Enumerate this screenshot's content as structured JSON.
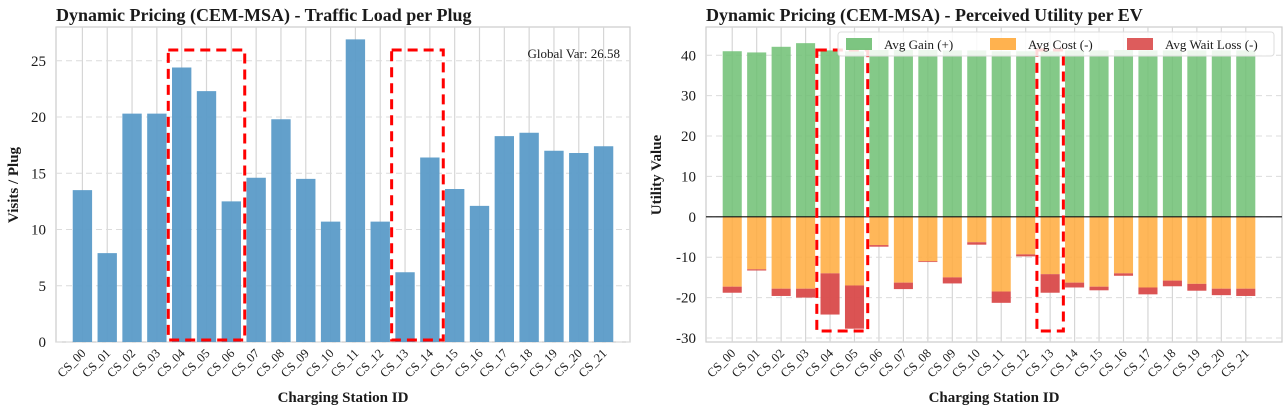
{
  "chart_data": [
    {
      "type": "bar",
      "title": "Dynamic Pricing (CEM-MSA) - Traffic Load per Plug",
      "xlabel": "Charging Station ID",
      "ylabel": "Visits / Plug",
      "ylim": [
        0,
        28
      ],
      "yticks": [
        0,
        5,
        10,
        15,
        20,
        25
      ],
      "categories": [
        "CS_00",
        "CS_01",
        "CS_02",
        "CS_03",
        "CS_04",
        "CS_05",
        "CS_06",
        "CS_07",
        "CS_08",
        "CS_09",
        "CS_10",
        "CS_11",
        "CS_12",
        "CS_13",
        "CS_14",
        "CS_15",
        "CS_16",
        "CS_17",
        "CS_18",
        "CS_19",
        "CS_20",
        "CS_21"
      ],
      "values": [
        13.5,
        7.9,
        20.3,
        20.3,
        24.4,
        22.3,
        12.5,
        14.6,
        19.8,
        14.5,
        10.7,
        26.9,
        10.7,
        6.2,
        16.4,
        13.6,
        12.1,
        18.3,
        18.6,
        17.0,
        16.8,
        17.4
      ],
      "bar_color": "#5b9bc8",
      "annotation": "Global Var: 26.58",
      "highlight_groups": [
        [
          4,
          6
        ],
        [
          13,
          14
        ]
      ],
      "highlight_color": "#ff0000",
      "grid": true
    },
    {
      "type": "bar",
      "title": "Dynamic Pricing (CEM-MSA) - Perceived Utility per EV",
      "xlabel": "Charging Station ID",
      "ylabel": "Utility Value",
      "ylim": [
        -31,
        47
      ],
      "yticks": [
        -30,
        -20,
        -10,
        0,
        10,
        20,
        30,
        40
      ],
      "categories": [
        "CS_00",
        "CS_01",
        "CS_02",
        "CS_03",
        "CS_04",
        "CS_05",
        "CS_06",
        "CS_07",
        "CS_08",
        "CS_09",
        "CS_10",
        "CS_11",
        "CS_12",
        "CS_13",
        "CS_14",
        "CS_15",
        "CS_16",
        "CS_17",
        "CS_18",
        "CS_19",
        "CS_20",
        "CS_21"
      ],
      "series": [
        {
          "name": "Avg Gain (+)",
          "color": "#6fbf73",
          "values": [
            41.0,
            40.7,
            42.1,
            43.0,
            41.2,
            41.0,
            41.3,
            41.3,
            41.3,
            41.2,
            41.2,
            41.0,
            41.0,
            41.0,
            41.2,
            41.2,
            41.3,
            41.2,
            41.2,
            41.2,
            41.2,
            41.2
          ]
        },
        {
          "name": "Avg Cost (-)",
          "color": "#ffaa3c",
          "values": [
            -17.3,
            -13.0,
            -17.8,
            -17.8,
            -14.0,
            -17.0,
            -7.0,
            -16.3,
            -11.0,
            -15.0,
            -6.3,
            -18.5,
            -9.3,
            -14.2,
            -16.3,
            -17.3,
            -14.0,
            -17.5,
            -15.8,
            -16.6,
            -17.8,
            -17.8
          ]
        },
        {
          "name": "Avg Wait Loss (-)",
          "color": "#d94a4a",
          "values": [
            -1.5,
            -0.3,
            -1.8,
            -2.2,
            -10.2,
            -10.7,
            -0.4,
            -1.6,
            -0.2,
            -1.5,
            -0.6,
            -2.8,
            -0.5,
            -4.6,
            -1.2,
            -0.9,
            -0.6,
            -1.7,
            -1.4,
            -1.7,
            -1.6,
            -1.8
          ]
        }
      ],
      "legend_position": "top",
      "highlight_groups": [
        [
          4,
          5
        ],
        [
          13,
          13
        ]
      ],
      "highlight_color": "#ff0000",
      "grid": true
    }
  ]
}
